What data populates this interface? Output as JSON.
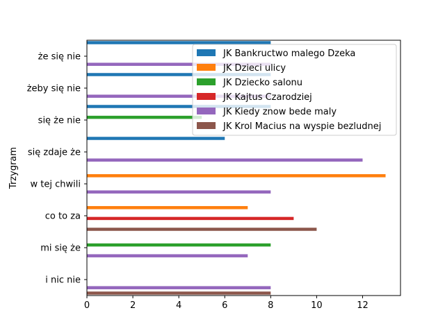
{
  "chart_data": {
    "type": "bar",
    "orientation": "horizontal",
    "ylabel": "Trzygram",
    "xlabel": "",
    "xlim": [
      0,
      13.65
    ],
    "xticks": [
      0,
      2,
      4,
      6,
      8,
      10,
      12
    ],
    "legend_position": "top-right",
    "grid": false,
    "categories": [
      "że się nie",
      "żeby się nie",
      "się że nie",
      "się zdaje że",
      "w tej chwili",
      "co to za",
      "mi się że",
      "i nic nie"
    ],
    "series": [
      {
        "name": "JK Bankructwo malego Dzeka",
        "color": "#1f77b4",
        "values": [
          8,
          8,
          8,
          6,
          0,
          0,
          0,
          0
        ]
      },
      {
        "name": "JK Dzieci ulicy",
        "color": "#ff7f0e",
        "values": [
          0,
          0,
          0,
          0,
          13,
          7,
          0,
          0
        ]
      },
      {
        "name": "JK Dziecko salonu",
        "color": "#2ca02c",
        "values": [
          0,
          0,
          5,
          0,
          0,
          0,
          8,
          0
        ]
      },
      {
        "name": "JK Kajtus Czarodziej",
        "color": "#d62728",
        "values": [
          0,
          0,
          0,
          0,
          0,
          9,
          0,
          0
        ]
      },
      {
        "name": "JK Kiedy znow bede maly",
        "color": "#9467bd",
        "values": [
          8,
          8,
          0,
          12,
          8,
          0,
          7,
          8
        ]
      },
      {
        "name": "JK Krol Macius na wyspie bezludnej",
        "color": "#8c564b",
        "values": [
          0,
          0,
          0,
          0,
          0,
          10,
          0,
          8
        ]
      }
    ]
  }
}
